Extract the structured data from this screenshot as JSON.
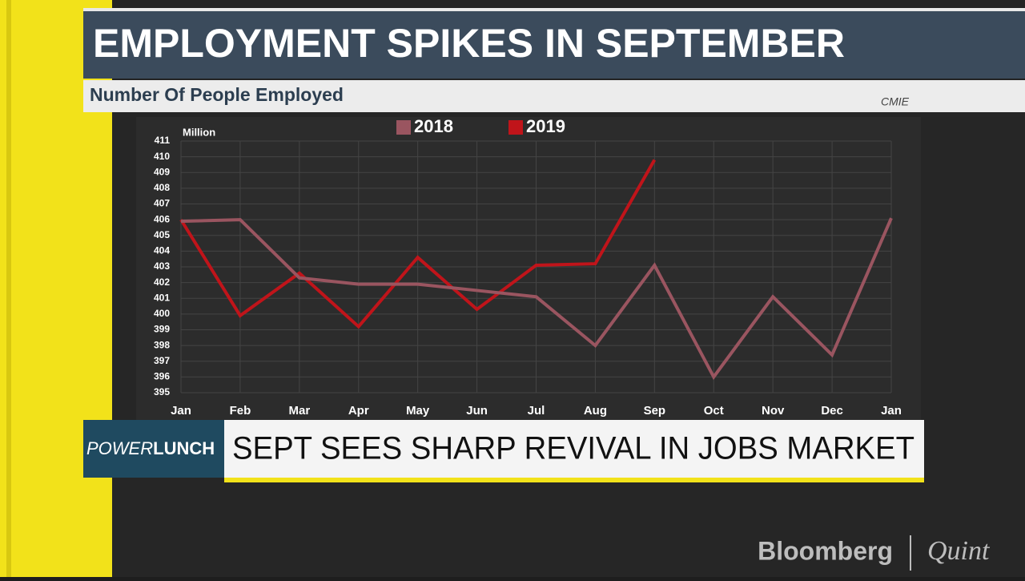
{
  "chart_data": {
    "type": "line",
    "title": "EMPLOYMENT SPIKES IN SEPTEMBER",
    "subtitle": "Number Of People Employed",
    "source": "CMIE",
    "y_label": "Million",
    "categories": [
      "Jan",
      "Feb",
      "Mar",
      "Apr",
      "May",
      "Jun",
      "Jul",
      "Aug",
      "Sep",
      "Oct",
      "Nov",
      "Dec",
      "Jan"
    ],
    "series": [
      {
        "name": "2018",
        "color": "#9a5560",
        "values": [
          405.9,
          406.0,
          402.3,
          401.9,
          401.9,
          401.5,
          401.1,
          398.0,
          403.1,
          396.0,
          401.1,
          397.4,
          406.1
        ]
      },
      {
        "name": "2019",
        "color": "#c0141a",
        "values": [
          406.0,
          399.9,
          402.6,
          399.2,
          403.6,
          400.3,
          403.1,
          403.2,
          409.8,
          null,
          null,
          null,
          null
        ]
      }
    ],
    "ylim": [
      395,
      411
    ],
    "yticks": [
      395,
      396,
      397,
      398,
      399,
      400,
      401,
      402,
      403,
      404,
      405,
      406,
      407,
      408,
      409,
      410,
      411
    ],
    "grid": true,
    "legend": "top"
  },
  "ticker": {
    "show": [
      "POWER",
      "LUNCH"
    ],
    "headline": "SEPT SEES SHARP REVIVAL IN JOBS MARKET"
  },
  "logo": {
    "left": "Bloomberg",
    "right": "Quint"
  }
}
